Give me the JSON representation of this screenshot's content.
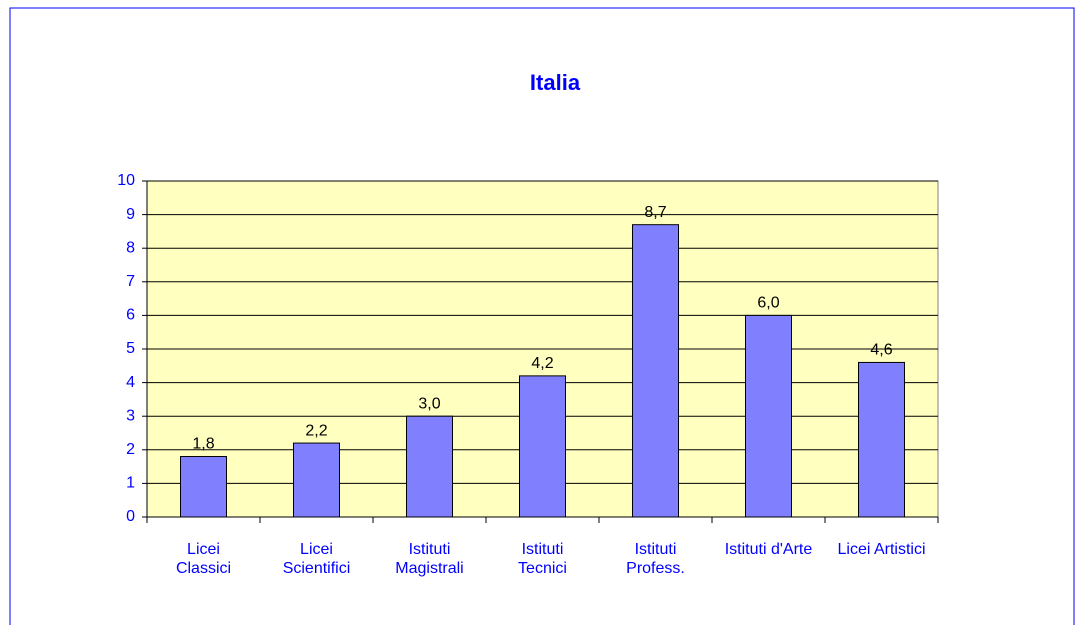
{
  "chart_data": {
    "type": "bar",
    "title": "Italia",
    "categories": [
      "Licei Classici",
      "Licei Scientifici",
      "Istituti Magistrali",
      "Istituti Tecnici",
      "Istituti Profess.",
      "Istituti d'Arte",
      "Licei Artistici"
    ],
    "values": [
      1.8,
      2.2,
      3.0,
      4.2,
      8.7,
      6.0,
      4.6
    ],
    "value_labels": [
      "1,8",
      "2,2",
      "3,0",
      "4,2",
      "8,7",
      "6,0",
      "4,6"
    ],
    "color": "#8080ff",
    "ylim": [
      0,
      10
    ],
    "yticks": [
      0,
      1,
      2,
      3,
      4,
      5,
      6,
      7,
      8,
      9,
      10
    ],
    "grid": true
  }
}
